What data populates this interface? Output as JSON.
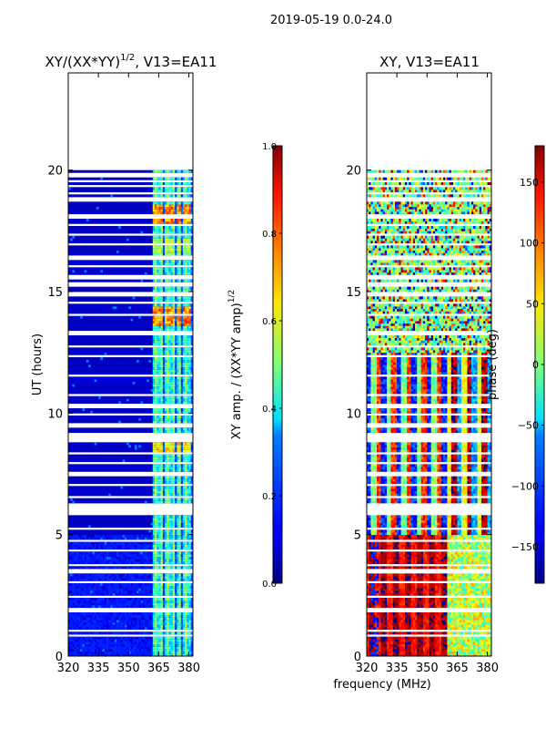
{
  "chart_data": {
    "type": "heatmap",
    "suptitle": "2019-05-19 0.0-24.0",
    "shared_xlabel": "frequency (MHz)",
    "panels": [
      {
        "id": "amp",
        "title": "XY/(XX*YY)",
        "title_exponent": "1/2",
        "title_suffix": ", V13=EA11",
        "ylabel": "UT (hours)",
        "xlim": [
          320,
          382
        ],
        "ylim": [
          0,
          24
        ],
        "xticks": [
          320,
          335,
          350,
          365,
          380
        ],
        "yticks": [
          0,
          5,
          10,
          15,
          20
        ],
        "data_extent_hours": [
          0,
          20
        ],
        "bright_bands_MHz": [
          [
            362,
            367
          ],
          [
            368,
            373
          ],
          [
            374,
            376
          ],
          [
            377,
            381
          ]
        ],
        "hot_spots": [
          {
            "t_start": 13.6,
            "t_end": 14.4,
            "level": 0.75
          },
          {
            "t_start": 17.8,
            "t_end": 18.6,
            "level": 0.75
          },
          {
            "t_start": 8.4,
            "t_end": 8.8,
            "level": 0.65
          },
          {
            "t_start": 16.5,
            "t_end": 17.2,
            "level": 0.55
          }
        ],
        "gap_hours": [
          0.85,
          1.05,
          1.9,
          2.45,
          3.05,
          3.5,
          3.75,
          4.35,
          4.75,
          5.25,
          5.9,
          6.05,
          6.2,
          6.55,
          7.05,
          7.5,
          7.95,
          8.35,
          8.9,
          9.1,
          9.5,
          9.95,
          10.3,
          10.75,
          11.55,
          12.35,
          12.75,
          13.3,
          14.05,
          14.55,
          14.9,
          15.3,
          15.6,
          16.05,
          16.4,
          16.95,
          17.35,
          17.75,
          18.1,
          18.8,
          19.05,
          19.35,
          19.55,
          19.8
        ],
        "colorbar": {
          "label": "XY amp. / (XX*YY amp)",
          "label_exponent": "1/2",
          "range": [
            0.0,
            1.0
          ],
          "ticks": [
            "0.0",
            "0.2",
            "0.4",
            "0.6",
            "0.8",
            "1.0"
          ],
          "tick_values": [
            0,
            0.2,
            0.4,
            0.6,
            0.8,
            1.0
          ],
          "colormap": "jet"
        }
      },
      {
        "id": "phase",
        "title": "XY, V13=EA11",
        "xlim": [
          320,
          382
        ],
        "ylim": [
          0,
          24
        ],
        "xticks": [
          320,
          335,
          350,
          365,
          380
        ],
        "yticks": [
          0,
          5,
          10,
          15,
          20
        ],
        "data_extent_hours": [
          0,
          20
        ],
        "colorbar": {
          "label": "phase (deg)",
          "range": [
            -180,
            180
          ],
          "ticks": [
            "-150",
            "-100",
            "-50",
            "0",
            "50",
            "100",
            "150"
          ],
          "tick_values": [
            -150,
            -100,
            -50,
            0,
            50,
            100,
            150
          ],
          "colormap": "jet"
        }
      }
    ]
  }
}
